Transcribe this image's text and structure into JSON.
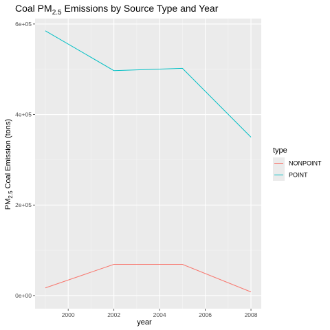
{
  "chart_data": {
    "type": "line",
    "title": {
      "prefix": "Coal PM",
      "subscript": "2.5",
      "suffix": " Emissions by Source Type and Year"
    },
    "xlabel": "year",
    "ylabel": {
      "prefix": "PM",
      "subscript": "2.5",
      "suffix": " Coal Emission (tons)"
    },
    "x": [
      1999,
      2002,
      2005,
      2008
    ],
    "xlim": [
      1998.55,
      2008.45
    ],
    "ylim": [
      -29000,
      612000
    ],
    "x_ticks": [
      2000,
      2002,
      2004,
      2006,
      2008
    ],
    "x_tick_labels": [
      "2000",
      "2002",
      "2004",
      "2006",
      "2008"
    ],
    "y_ticks": [
      0,
      200000,
      400000,
      600000
    ],
    "y_tick_labels": [
      "0e+00",
      "2e+05",
      "4e+05",
      "6e+05"
    ],
    "grid": true,
    "legend": {
      "title": "type",
      "placement": "right"
    },
    "series": [
      {
        "name": "NONPOINT",
        "color": "#F8766D",
        "values": [
          17000,
          69000,
          69000,
          8000
        ]
      },
      {
        "name": "POINT",
        "color": "#00BFC4",
        "values": [
          585000,
          497000,
          502000,
          350000
        ]
      }
    ],
    "colors": {
      "panel_background": "#EBEBEB",
      "grid_major": "#FFFFFF",
      "grid_minor": "#F5F5F5"
    }
  }
}
